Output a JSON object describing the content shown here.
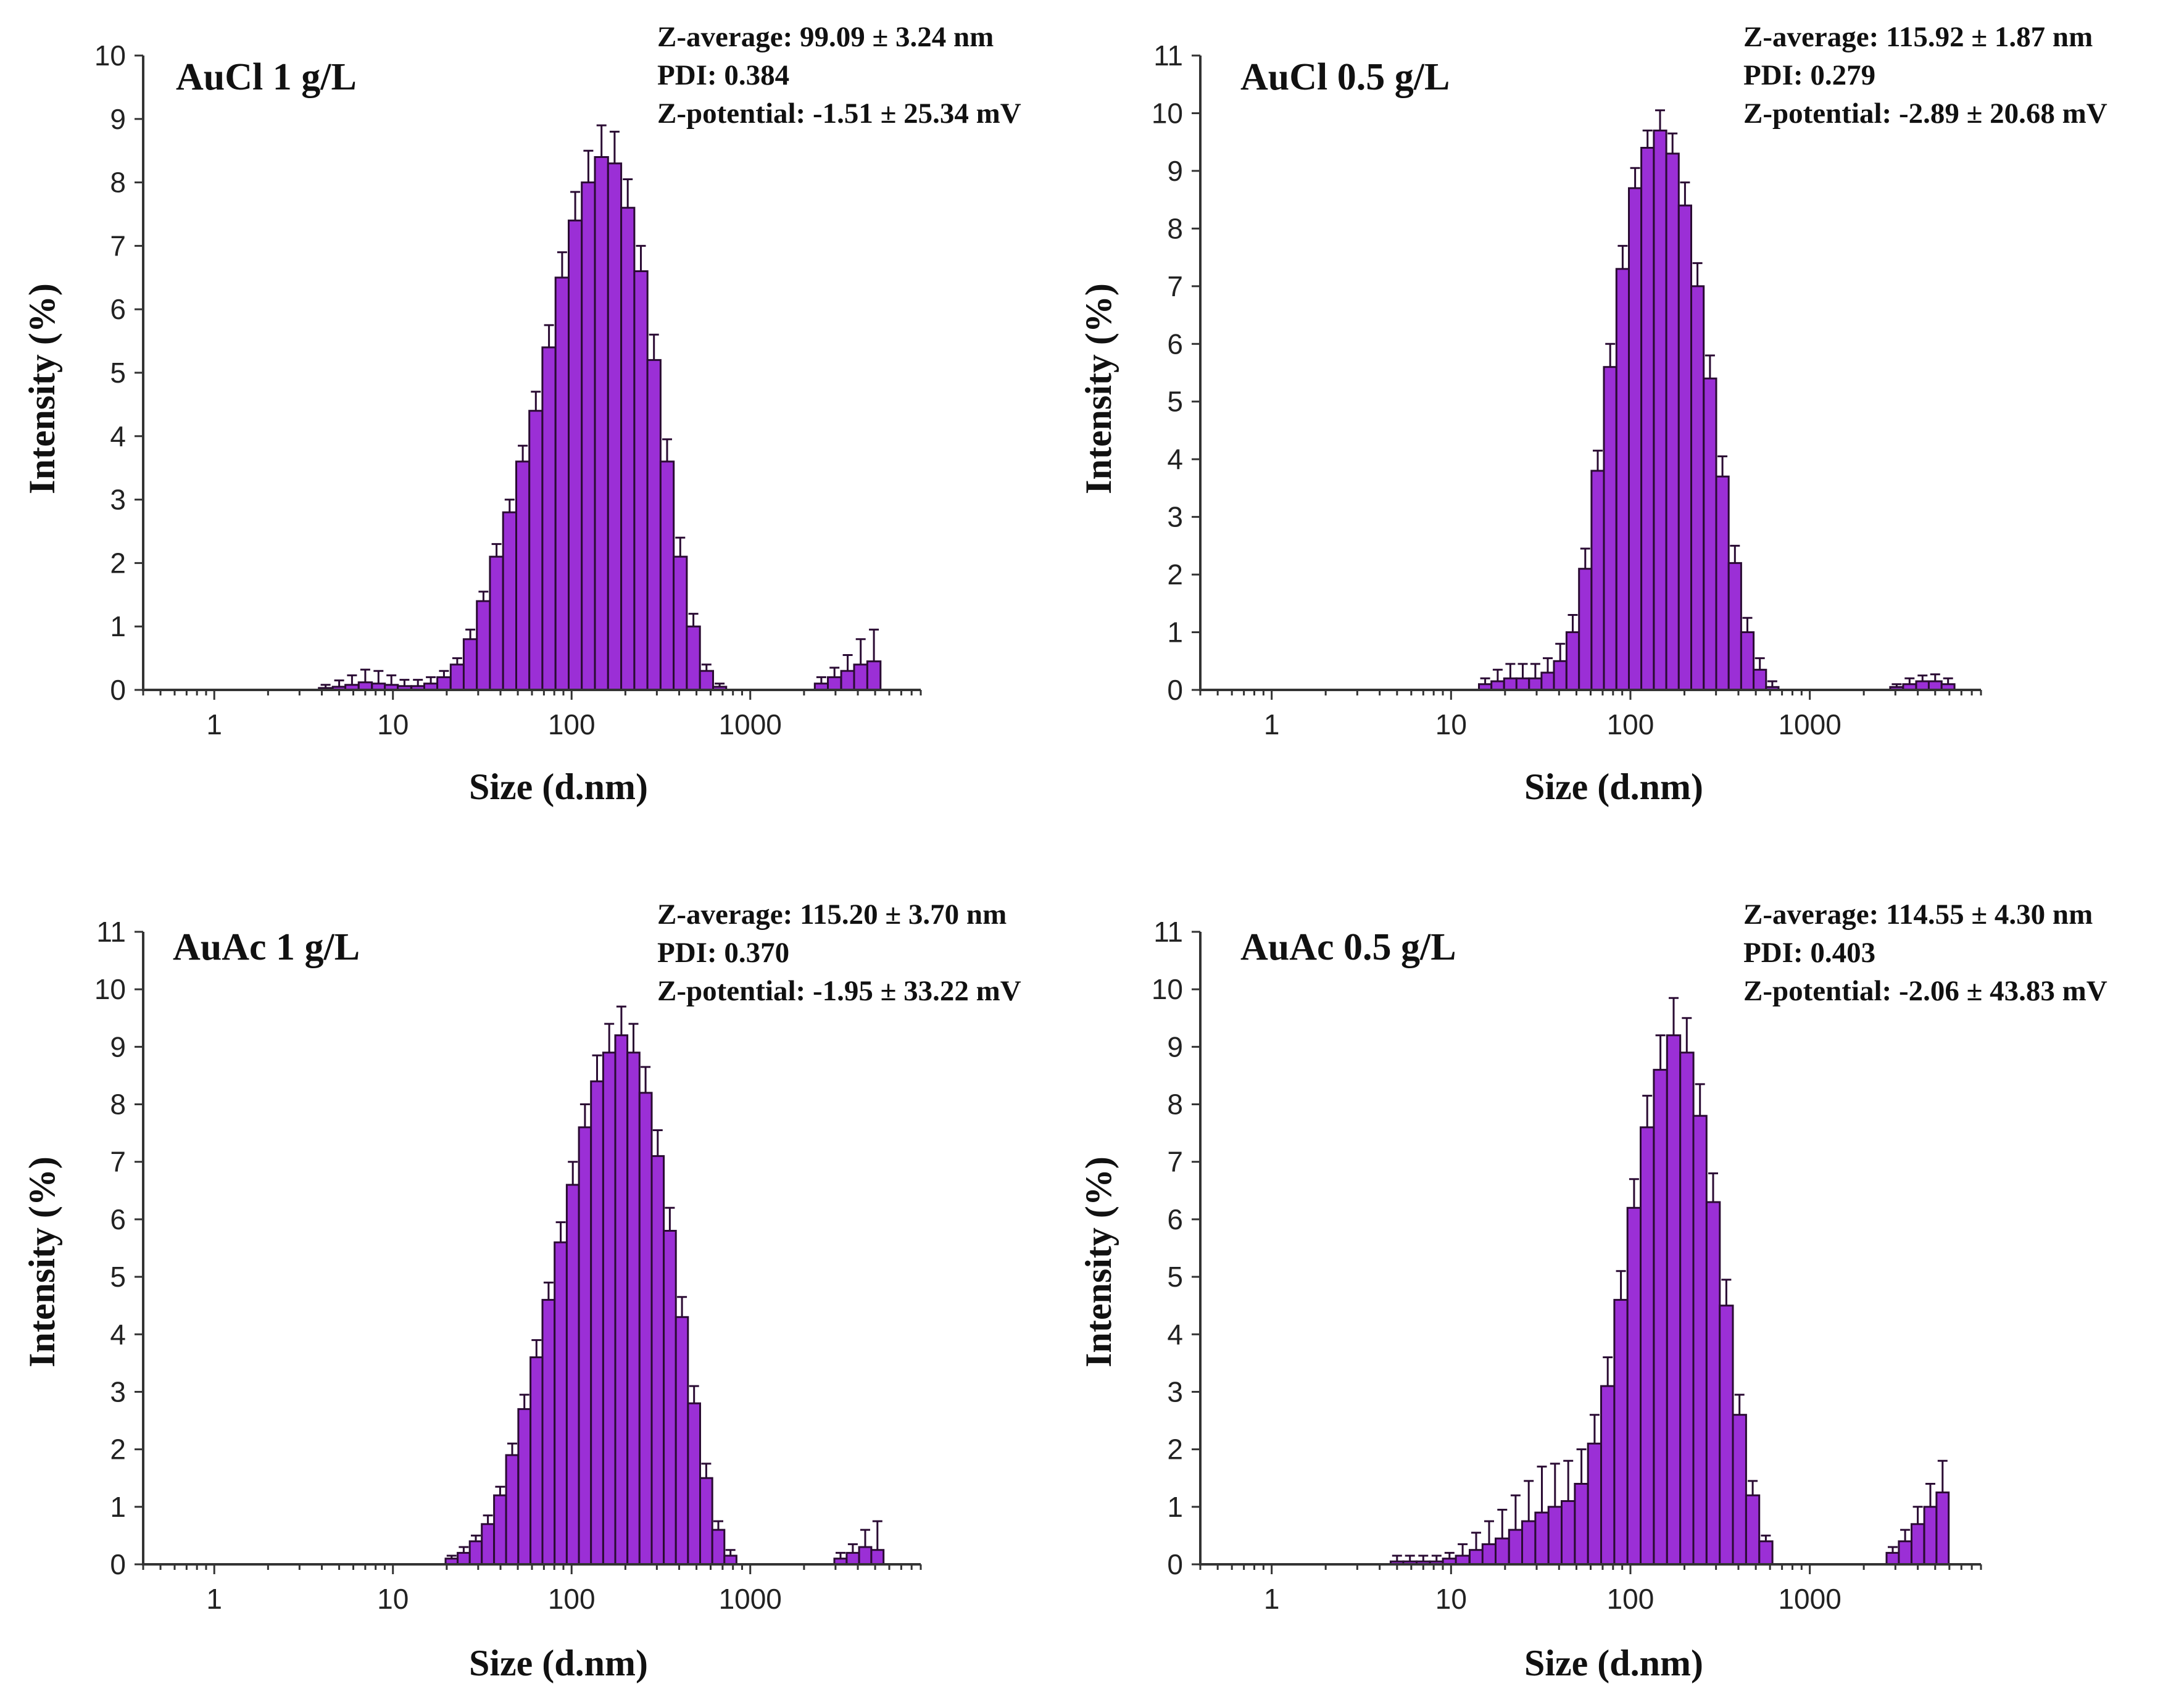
{
  "figure": {
    "panels": [
      {
        "title": "AuCl 1 g/L",
        "stats": [
          "Z-average: 99.09 ± 3.24 nm",
          "PDI: 0.384",
          "Z-potential: -1.51 ± 25.34 mV"
        ]
      },
      {
        "title": "AuCl 0.5 g/L",
        "stats": [
          "Z-average: 115.92 ± 1.87 nm",
          "PDI: 0.279",
          "Z-potential: -2.89 ± 20.68 mV"
        ]
      },
      {
        "title": "AuAc 1 g/L",
        "stats": [
          "Z-average: 115.20 ± 3.70 nm",
          "PDI: 0.370",
          "Z-potential: -1.95 ± 33.22 mV"
        ]
      },
      {
        "title": "AuAc 0.5 g/L",
        "stats": [
          "Z-average: 114.55 ± 4.30 nm",
          "PDI: 0.403",
          "Z-potential: -2.06 ± 43.83 mV"
        ]
      }
    ]
  },
  "colors": {
    "bar_fill": "#9b2fd6",
    "bar_edge": "#2a0b33",
    "error_bar": "#2a0b33",
    "axis": "#333333"
  },
  "chart_data": [
    {
      "type": "bar",
      "title": "AuCl 1 g/L",
      "xlabel": "Size (d.nm)",
      "ylabel": "Intensity (%)",
      "xscale": "log",
      "xlim": [
        0.4,
        9000
      ],
      "ylim": [
        0,
        10
      ],
      "xticks": [
        "1",
        "10",
        "100",
        "1000"
      ],
      "yticks": [
        "0",
        "1",
        "2",
        "3",
        "4",
        "5",
        "6",
        "7",
        "8",
        "9",
        "10"
      ],
      "x": [
        4.2,
        5.0,
        5.9,
        7.0,
        8.3,
        9.8,
        11.6,
        13.8,
        16.3,
        19.3,
        22.9,
        27.1,
        32.1,
        38.0,
        45.0,
        53.3,
        63.1,
        74.7,
        88.5,
        104.8,
        124.1,
        147.0,
        174.1,
        206.2,
        244.2,
        289.2,
        342.5,
        405.6,
        480.4,
        568.9,
        673.8,
        2500,
        2960,
        3510,
        4150,
        4920
      ],
      "values": [
        0.03,
        0.05,
        0.08,
        0.12,
        0.1,
        0.08,
        0.06,
        0.06,
        0.1,
        0.2,
        0.4,
        0.8,
        1.4,
        2.1,
        2.8,
        3.6,
        4.4,
        5.4,
        6.5,
        7.4,
        8.0,
        8.4,
        8.3,
        7.6,
        6.6,
        5.2,
        3.6,
        2.1,
        1.0,
        0.3,
        0.05,
        0.1,
        0.2,
        0.3,
        0.4,
        0.45
      ],
      "errors": [
        0.05,
        0.1,
        0.15,
        0.2,
        0.2,
        0.15,
        0.1,
        0.1,
        0.1,
        0.1,
        0.1,
        0.15,
        0.15,
        0.2,
        0.2,
        0.25,
        0.3,
        0.35,
        0.4,
        0.45,
        0.5,
        0.5,
        0.5,
        0.45,
        0.4,
        0.4,
        0.35,
        0.3,
        0.2,
        0.1,
        0.05,
        0.1,
        0.15,
        0.25,
        0.4,
        0.5
      ]
    },
    {
      "type": "bar",
      "title": "AuCl 0.5 g/L",
      "xlabel": "Size (d.nm)",
      "ylabel": "Intensity (%)",
      "xscale": "log",
      "xlim": [
        0.4,
        9000
      ],
      "ylim": [
        0,
        11
      ],
      "xticks": [
        "1",
        "10",
        "100",
        "1000"
      ],
      "yticks": [
        "0",
        "1",
        "2",
        "3",
        "4",
        "5",
        "6",
        "7",
        "8",
        "9",
        "10",
        "11"
      ],
      "x": [
        15.5,
        18.2,
        21.4,
        25.1,
        29.5,
        34.6,
        40.6,
        47.7,
        56.0,
        65.7,
        77.1,
        90.5,
        106.2,
        124.6,
        146.3,
        171.7,
        201.5,
        236.5,
        277.6,
        325.8,
        382.4,
        448.8,
        526.7,
        618.2,
        3050,
        3600,
        4250,
        5000,
        5900
      ],
      "values": [
        0.1,
        0.15,
        0.2,
        0.2,
        0.2,
        0.3,
        0.5,
        1.0,
        2.1,
        3.8,
        5.6,
        7.3,
        8.7,
        9.4,
        9.7,
        9.3,
        8.4,
        7.0,
        5.4,
        3.7,
        2.2,
        1.0,
        0.35,
        0.05,
        0.05,
        0.1,
        0.15,
        0.15,
        0.1
      ],
      "errors": [
        0.1,
        0.2,
        0.25,
        0.25,
        0.25,
        0.25,
        0.3,
        0.3,
        0.35,
        0.35,
        0.4,
        0.4,
        0.35,
        0.3,
        0.35,
        0.35,
        0.4,
        0.4,
        0.4,
        0.35,
        0.3,
        0.25,
        0.2,
        0.1,
        0.05,
        0.1,
        0.1,
        0.12,
        0.1
      ]
    },
    {
      "type": "bar",
      "title": "AuAc 1 g/L",
      "xlabel": "Size (d.nm)",
      "ylabel": "Intensity (%)",
      "xscale": "log",
      "xlim": [
        0.4,
        9000
      ],
      "ylim": [
        0,
        11
      ],
      "xticks": [
        "1",
        "10",
        "100",
        "1000"
      ],
      "yticks": [
        "0",
        "1",
        "2",
        "3",
        "4",
        "5",
        "6",
        "7",
        "8",
        "9",
        "10",
        "11"
      ],
      "x": [
        21.3,
        24.9,
        29.1,
        34.0,
        39.8,
        46.5,
        54.4,
        63.6,
        74.3,
        86.9,
        101.6,
        118.8,
        138.9,
        162.4,
        189.9,
        222.0,
        259.5,
        303.4,
        354.7,
        414.7,
        484.8,
        566.8,
        662.7,
        774.8,
        3200,
        3750,
        4400,
        5150
      ],
      "values": [
        0.1,
        0.2,
        0.4,
        0.7,
        1.2,
        1.9,
        2.7,
        3.6,
        4.6,
        5.6,
        6.6,
        7.6,
        8.4,
        8.9,
        9.2,
        8.9,
        8.2,
        7.1,
        5.8,
        4.3,
        2.8,
        1.5,
        0.6,
        0.15,
        0.1,
        0.2,
        0.3,
        0.25
      ],
      "errors": [
        0.05,
        0.1,
        0.1,
        0.15,
        0.15,
        0.2,
        0.25,
        0.3,
        0.3,
        0.35,
        0.4,
        0.4,
        0.45,
        0.5,
        0.5,
        0.5,
        0.45,
        0.45,
        0.4,
        0.35,
        0.3,
        0.25,
        0.15,
        0.1,
        0.1,
        0.15,
        0.3,
        0.5
      ]
    },
    {
      "type": "bar",
      "title": "AuAc 0.5 g/L",
      "xlabel": "Size (d.nm)",
      "ylabel": "Intensity (%)",
      "xscale": "log",
      "xlim": [
        0.4,
        9000
      ],
      "ylim": [
        0,
        11
      ],
      "xticks": [
        "1",
        "10",
        "100",
        "1000"
      ],
      "yticks": [
        "0",
        "1",
        "2",
        "3",
        "4",
        "5",
        "6",
        "7",
        "8",
        "9",
        "10",
        "11"
      ],
      "x": [
        5.0,
        5.9,
        7.0,
        8.3,
        9.8,
        11.6,
        13.8,
        16.3,
        19.3,
        22.9,
        27.1,
        32.1,
        38.0,
        45.0,
        53.3,
        63.1,
        74.7,
        88.5,
        104.8,
        124.1,
        147.0,
        174.1,
        206.2,
        244.2,
        289.2,
        342.5,
        405.6,
        480.4,
        568.9,
        2900,
        3400,
        4000,
        4700,
        5500
      ],
      "values": [
        0.05,
        0.05,
        0.05,
        0.05,
        0.1,
        0.15,
        0.25,
        0.35,
        0.45,
        0.6,
        0.75,
        0.9,
        1.0,
        1.1,
        1.4,
        2.1,
        3.1,
        4.6,
        6.2,
        7.6,
        8.6,
        9.2,
        8.9,
        7.8,
        6.3,
        4.5,
        2.6,
        1.2,
        0.4,
        0.2,
        0.4,
        0.7,
        1.0,
        1.25
      ],
      "errors": [
        0.1,
        0.1,
        0.1,
        0.1,
        0.1,
        0.2,
        0.3,
        0.4,
        0.5,
        0.6,
        0.7,
        0.8,
        0.75,
        0.7,
        0.6,
        0.5,
        0.5,
        0.5,
        0.5,
        0.55,
        0.6,
        0.65,
        0.6,
        0.55,
        0.5,
        0.45,
        0.35,
        0.25,
        0.1,
        0.1,
        0.2,
        0.3,
        0.4,
        0.55
      ]
    }
  ]
}
